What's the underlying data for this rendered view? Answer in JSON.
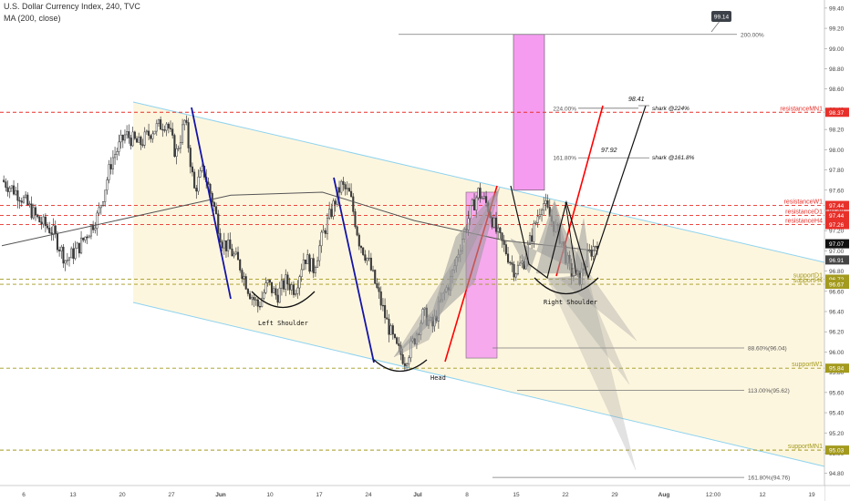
{
  "header": {
    "symbol_line": "U.S. Dollar Currency Index, 240, TVC",
    "indicator_line": "MA (200, close)"
  },
  "colors": {
    "candle": "#3a3a3a",
    "channel_line": "#8fd3ef",
    "channel_fill": "#fdf5dc",
    "resistance": "#e8302a",
    "support": "#a39a1e",
    "ma": "#555555",
    "pink_box": "#f59cf0",
    "harmonic_fill": "#9a9a9a",
    "blue_leg": "#1414a6",
    "red_leg": "#ff0000"
  },
  "chart_data": {
    "type": "candlestick",
    "title": "U.S. Dollar Currency Index, 240, TVC",
    "x_ticks": [
      "6",
      "13",
      "20",
      "27",
      "Jun",
      "10",
      "17",
      "24",
      "Jul",
      "8",
      "15",
      "22",
      "29",
      "Aug",
      "12:00",
      "12",
      "19"
    ],
    "y_ticks": [
      "94.80",
      "95.00",
      "95.20",
      "95.40",
      "95.60",
      "95.80",
      "96.00",
      "96.20",
      "96.40",
      "96.60",
      "96.80",
      "97.00",
      "97.20",
      "97.40",
      "97.60",
      "97.80",
      "98.00",
      "98.20",
      "98.40",
      "98.60",
      "98.80",
      "99.00",
      "99.20",
      "99.40"
    ],
    "ylim": [
      94.68,
      99.48
    ],
    "price_path": [
      [
        0,
        97.7
      ],
      [
        4,
        97.55
      ],
      [
        8,
        97.3
      ],
      [
        11,
        97.2
      ],
      [
        14,
        96.9
      ],
      [
        17,
        97.05
      ],
      [
        21,
        97.35
      ],
      [
        24,
        97.9
      ],
      [
        27,
        98.15
      ],
      [
        30,
        98.05
      ],
      [
        33,
        98.2
      ],
      [
        36,
        98.28
      ],
      [
        38,
        97.95
      ],
      [
        40,
        98.3
      ],
      [
        42,
        97.6
      ],
      [
        44,
        97.8
      ],
      [
        46,
        97.5
      ],
      [
        48,
        97.1
      ],
      [
        50,
        97.0
      ],
      [
        52,
        96.85
      ],
      [
        54,
        96.6
      ],
      [
        56,
        96.45
      ],
      [
        58,
        96.68
      ],
      [
        60,
        96.55
      ],
      [
        62,
        96.7
      ],
      [
        64,
        96.62
      ],
      [
        66,
        96.95
      ],
      [
        68,
        96.82
      ],
      [
        70,
        97.15
      ],
      [
        72,
        97.4
      ],
      [
        74,
        97.65
      ],
      [
        76,
        97.55
      ],
      [
        78,
        97.1
      ],
      [
        80,
        96.9
      ],
      [
        82,
        96.6
      ],
      [
        84,
        96.3
      ],
      [
        86,
        96.05
      ],
      [
        88,
        95.92
      ],
      [
        90,
        96.12
      ],
      [
        92,
        96.38
      ],
      [
        94,
        96.25
      ],
      [
        96,
        96.52
      ],
      [
        98,
        96.72
      ],
      [
        100,
        97.05
      ],
      [
        102,
        97.35
      ],
      [
        104,
        97.58
      ],
      [
        106,
        97.45
      ],
      [
        108,
        97.18
      ],
      [
        110,
        97.0
      ],
      [
        112,
        96.8
      ],
      [
        114,
        96.9
      ],
      [
        116,
        97.2
      ],
      [
        118,
        97.5
      ],
      [
        120,
        97.3
      ],
      [
        122,
        97.12
      ],
      [
        124,
        96.8
      ],
      [
        126,
        96.72
      ],
      [
        128,
        96.95
      ],
      [
        130,
        97.1
      ]
    ],
    "price_x_range": [
      0,
      130
    ],
    "ma200_path": [
      [
        0,
        97.05
      ],
      [
        30,
        97.35
      ],
      [
        50,
        97.55
      ],
      [
        70,
        97.58
      ],
      [
        90,
        97.3
      ],
      [
        110,
        97.1
      ],
      [
        130,
        97.0
      ]
    ],
    "horizontal_levels": [
      {
        "label": "resistanceMN1",
        "value": 98.37,
        "tag": "98.37",
        "kind": "resistance"
      },
      {
        "label": "resistanceW1",
        "value": 97.44,
        "tag": "97.44",
        "kind": "resistance"
      },
      {
        "label": "resistanceD1",
        "value": 97.44,
        "tag": "97.44",
        "kind": "resistance"
      },
      {
        "label": "resistanceH4",
        "value": 97.26,
        "tag": "97.26",
        "kind": "resistance"
      },
      {
        "label": "supportD1",
        "value": 96.72,
        "tag": "96.72",
        "kind": "support"
      },
      {
        "label": "supportH4",
        "value": 96.67,
        "tag": "96.67",
        "kind": "support"
      },
      {
        "label": "supportW1",
        "value": 95.84,
        "tag": "95.84",
        "kind": "support"
      },
      {
        "label": "supportMN1",
        "value": 95.03,
        "tag": "95.03",
        "kind": "support"
      }
    ],
    "axis_price_tags": [
      {
        "value": 97.07,
        "tag": "97.07"
      },
      {
        "value": 96.91,
        "tag": "96.91"
      }
    ],
    "fib_levels": [
      {
        "label": "200.00%",
        "value": 99.14
      },
      {
        "label": "224.00%",
        "value": 98.41
      },
      {
        "label": "161.80%",
        "value": 97.92
      },
      {
        "label": "88.60%(96.04)",
        "value": 96.04
      },
      {
        "label": "113.00%(95.62)",
        "value": 95.62
      },
      {
        "label": "161.80%(94.76)",
        "value": 94.76
      }
    ],
    "callout": {
      "label": "99.14",
      "value": 99.14
    },
    "targets": [
      {
        "value_label": "98.41",
        "name": "shark @224%",
        "value": 98.41
      },
      {
        "value_label": "97.92",
        "name": "shark @161.8%",
        "value": 97.92
      }
    ],
    "pattern_labels": {
      "left_shoulder": "Left Shoulder",
      "head": "Head",
      "right_shoulder": "Right Shoulder"
    }
  }
}
